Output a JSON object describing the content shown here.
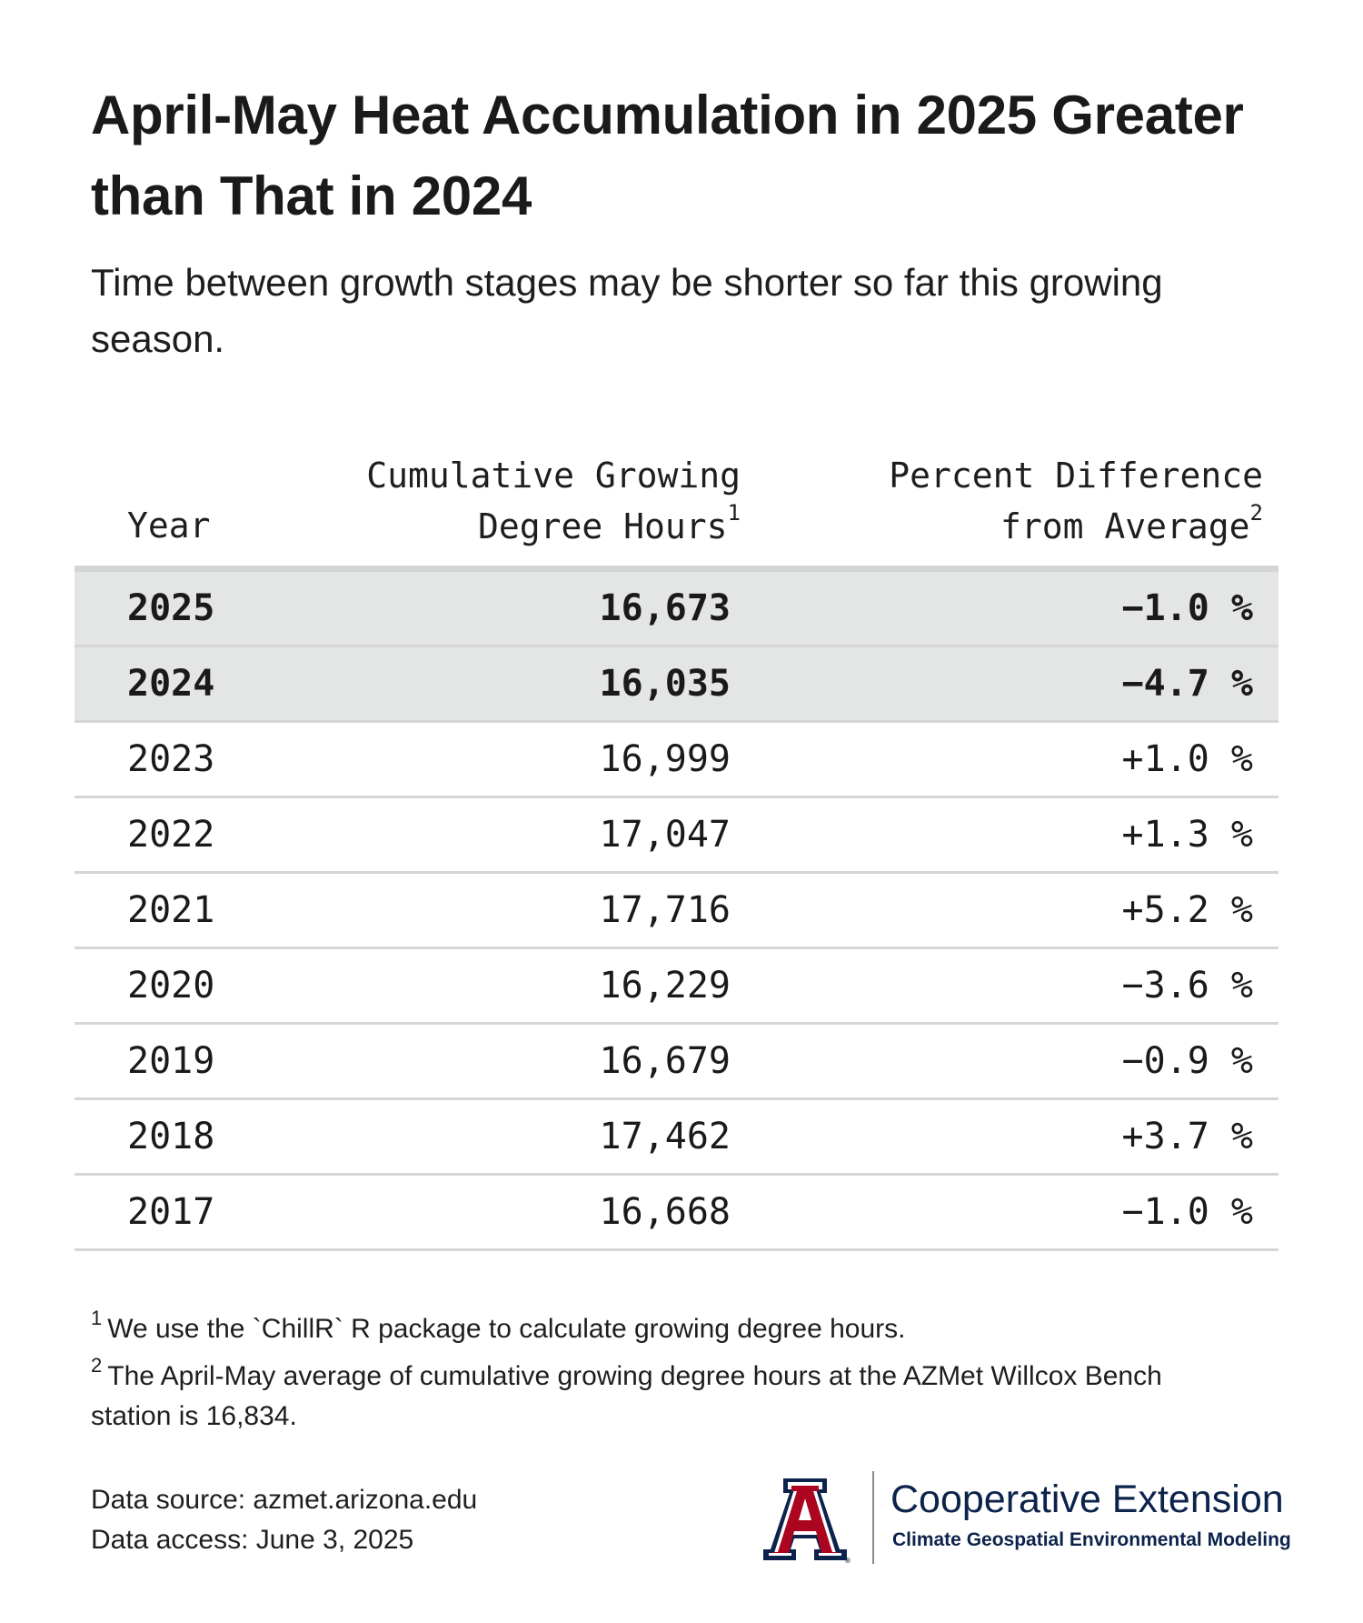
{
  "header": {
    "title": "April-May Heat Accumulation in 2025 Greater than That in 2024",
    "subtitle": "Time between growth stages may be shorter so far this growing season."
  },
  "chart_data": {
    "type": "table",
    "columns": [
      {
        "label": "Year"
      },
      {
        "label_line1": "Cumulative Growing",
        "label_line2": "Degree Hours",
        "footnote": "1"
      },
      {
        "label_line1": "Percent Difference",
        "label_line2": "from Average",
        "footnote": "2"
      }
    ],
    "rows": [
      {
        "year": "2025",
        "gdh": "16,673",
        "pct": "−1.0 %",
        "highlight": true
      },
      {
        "year": "2024",
        "gdh": "16,035",
        "pct": "−4.7 %",
        "highlight": true
      },
      {
        "year": "2023",
        "gdh": "16,999",
        "pct": "+1.0 %",
        "highlight": false
      },
      {
        "year": "2022",
        "gdh": "17,047",
        "pct": "+1.3 %",
        "highlight": false
      },
      {
        "year": "2021",
        "gdh": "17,716",
        "pct": "+5.2 %",
        "highlight": false
      },
      {
        "year": "2020",
        "gdh": "16,229",
        "pct": "−3.6 %",
        "highlight": false
      },
      {
        "year": "2019",
        "gdh": "16,679",
        "pct": "−0.9 %",
        "highlight": false
      },
      {
        "year": "2018",
        "gdh": "17,462",
        "pct": "+3.7 %",
        "highlight": false
      },
      {
        "year": "2017",
        "gdh": "16,668",
        "pct": "−1.0 %",
        "highlight": false
      }
    ],
    "series": [
      {
        "name": "Cumulative Growing Degree Hours",
        "x": [
          2025,
          2024,
          2023,
          2022,
          2021,
          2020,
          2019,
          2018,
          2017
        ],
        "values": [
          16673,
          16035,
          16999,
          17047,
          17716,
          16229,
          16679,
          17462,
          16668
        ]
      },
      {
        "name": "Percent Difference from Average",
        "x": [
          2025,
          2024,
          2023,
          2022,
          2021,
          2020,
          2019,
          2018,
          2017
        ],
        "values": [
          -1.0,
          -4.7,
          1.0,
          1.3,
          5.2,
          -3.6,
          -0.9,
          3.7,
          -1.0
        ]
      }
    ],
    "highlight_color": "#e4e5e5",
    "rule_color": "#d6d6d6"
  },
  "footnotes": [
    {
      "marker": "1",
      "text": "We use the `ChillR` R package to calculate growing degree hours."
    },
    {
      "marker": "2",
      "text": "The April-May average of cumulative growing degree hours at the AZMet Willcox Bench station is 16,834."
    }
  ],
  "source": {
    "line1": "Data source: azmet.arizona.edu",
    "line2": "Data access: June 3, 2025"
  },
  "branding": {
    "logo_icon": "university-block-a-icon",
    "org": "Cooperative Extension",
    "unit": "Climate Geospatial Environmental Modeling",
    "navy": "#0c234b",
    "red": "#ab0520"
  }
}
